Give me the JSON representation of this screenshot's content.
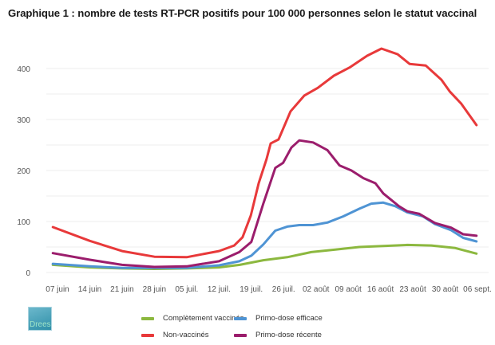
{
  "title": "Graphique 1 : nombre de tests RT-PCR positifs pour 100 000 personnes selon le statut vaccinal",
  "logo": {
    "text": "Drees"
  },
  "chart_data": {
    "type": "line",
    "title": "Graphique 1 : nombre de tests RT-PCR positifs pour 100 000 personnes selon le statut vaccinal",
    "xlabel": "",
    "ylabel": "",
    "x_unit": "days since 07 juin",
    "xlim": [
      -1,
      91
    ],
    "ylim": [
      0,
      400
    ],
    "grid": true,
    "grid_step": 50,
    "yticks": [
      0,
      100,
      200,
      300,
      400
    ],
    "xticks": [
      {
        "day": 0,
        "label": "07 juin"
      },
      {
        "day": 7,
        "label": "14 juin"
      },
      {
        "day": 14,
        "label": "21 juin"
      },
      {
        "day": 21,
        "label": "28 juin"
      },
      {
        "day": 28,
        "label": "05 juil."
      },
      {
        "day": 35,
        "label": "12 juil."
      },
      {
        "day": 42,
        "label": "19 juil."
      },
      {
        "day": 49,
        "label": "26 juil."
      },
      {
        "day": 56,
        "label": "02 août"
      },
      {
        "day": 63,
        "label": "09 août"
      },
      {
        "day": 70,
        "label": "16 août"
      },
      {
        "day": 77,
        "label": "23 août"
      },
      {
        "day": 84,
        "label": "30 août"
      },
      {
        "day": 91,
        "label": "06 sept."
      }
    ],
    "legend_position": "bottom",
    "series": [
      {
        "name": "Complètement vaccinés",
        "color": "#8cb83f",
        "x": [
          -1,
          7,
          14,
          21,
          28,
          35,
          39.5,
          44.6,
          49.8,
          55,
          60.2,
          65.4,
          70.6,
          75.8,
          81,
          86.2,
          90.8
        ],
        "values": [
          15,
          10,
          8,
          7,
          8,
          10,
          15,
          24,
          30,
          40,
          45,
          50,
          52,
          54,
          53,
          48,
          37
        ]
      },
      {
        "name": "Non-vaccinés",
        "color": "#e8393a",
        "x": [
          -1,
          7,
          14,
          21,
          28,
          35,
          38.3,
          40.1,
          41.9,
          43.6,
          45.3,
          46.2,
          47.9,
          50.5,
          53.5,
          56.4,
          59.9,
          63.3,
          67.1,
          70.2,
          73.7,
          76.3,
          79.8,
          83.2,
          85,
          87.5,
          90.8
        ],
        "values": [
          89,
          62,
          42,
          31,
          30,
          42,
          53,
          69,
          112,
          175,
          222,
          253,
          261,
          316,
          347,
          362,
          386,
          402,
          425,
          439,
          428,
          409,
          406,
          378,
          355,
          331,
          289
        ]
      },
      {
        "name": "Primo-dose efficace",
        "color": "#4f94d4",
        "x": [
          -1,
          7,
          14,
          21,
          28,
          35,
          39.4,
          42,
          44.6,
          47.2,
          49.8,
          52.4,
          55.4,
          58.5,
          61.9,
          65.4,
          68,
          70.6,
          73.2,
          75.8,
          79.2,
          81.8,
          85.3,
          87.9,
          90.8
        ],
        "values": [
          17,
          12,
          9,
          9,
          9,
          14,
          22,
          33,
          55,
          82,
          90,
          93,
          93,
          98,
          110,
          125,
          135,
          137,
          130,
          118,
          110,
          95,
          83,
          68,
          61
        ]
      },
      {
        "name": "Primo-dose récente",
        "color": "#9b1d6c",
        "x": [
          -1,
          7,
          14,
          21,
          28,
          35,
          39.4,
          42,
          44.6,
          47.2,
          48.9,
          50.7,
          52.4,
          55.4,
          58.5,
          61.1,
          63.7,
          66.3,
          68.9,
          70.6,
          74.0,
          75.8,
          78.4,
          81.8,
          85.3,
          87.9,
          90.8
        ],
        "values": [
          38,
          25,
          15,
          11,
          12,
          22,
          40,
          60,
          135,
          205,
          215,
          245,
          259,
          255,
          240,
          210,
          200,
          185,
          175,
          155,
          130,
          120,
          115,
          97,
          88,
          75,
          72
        ]
      }
    ]
  },
  "legend": [
    {
      "label": "Complètement vaccinés",
      "color": "#8cb83f"
    },
    {
      "label": "Primo-dose efficace",
      "color": "#4f94d4"
    },
    {
      "label": "Non-vaccinés",
      "color": "#e8393a"
    },
    {
      "label": "Primo-dose récente",
      "color": "#9b1d6c"
    }
  ]
}
